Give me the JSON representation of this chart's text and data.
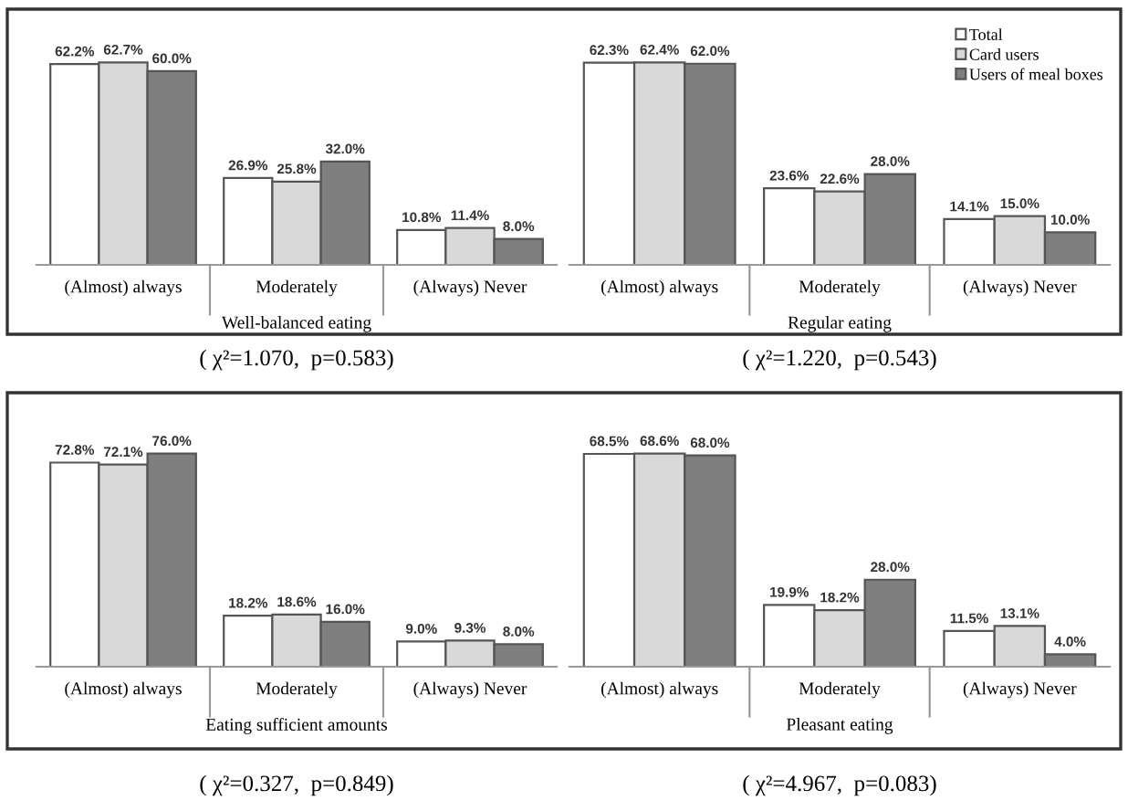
{
  "chart_data": [
    {
      "type": "bar",
      "xlabel": "Well-balanced eating",
      "categories": [
        "(Almost) always",
        "Moderately",
        "(Always) Never"
      ],
      "annotations": [
        "( χ²=1.070,  p=0.583)"
      ],
      "series": [
        {
          "color": "#ffffff",
          "values": [
            62.2,
            26.9,
            10.8
          ],
          "value_labels": [
            "62.2%",
            "26.9%",
            "10.8%"
          ]
        },
        {
          "color": "#d9d9d9",
          "values": [
            62.7,
            25.8,
            11.4
          ],
          "value_labels": [
            "62.7%",
            "25.8%",
            "11.4%"
          ]
        },
        {
          "color": "#7f7f7f",
          "values": [
            60.0,
            32.0,
            8.0
          ],
          "value_labels": [
            "60.0%",
            "32.0%",
            "8.0%"
          ]
        }
      ]
    },
    {
      "type": "bar",
      "xlabel": "Regular eating",
      "categories": [
        "(Almost) always",
        "Moderately",
        "(Always) Never"
      ],
      "annotations": [
        "( χ²=1.220,  p=0.543)"
      ],
      "legend": "top right",
      "series": [
        {
          "name": "Total",
          "color": "#ffffff",
          "values": [
            62.3,
            23.6,
            14.1
          ],
          "value_labels": [
            "62.3%",
            "23.6%",
            "14.1%"
          ]
        },
        {
          "name": "Card users",
          "color": "#d9d9d9",
          "values": [
            62.4,
            22.6,
            15.0
          ],
          "value_labels": [
            "62.4%",
            "22.6%",
            "15.0%"
          ]
        },
        {
          "name": "Users of meal boxes",
          "color": "#7f7f7f",
          "values": [
            62.0,
            28.0,
            10.0
          ],
          "value_labels": [
            "62.0%",
            "28.0%",
            "10.0%"
          ]
        }
      ]
    },
    {
      "type": "bar",
      "xlabel": "Eating sufficient amounts",
      "categories": [
        "(Almost) always",
        "Moderately",
        "(Always) Never"
      ],
      "annotations": [
        "( χ²=0.327,  p=0.849)"
      ],
      "series": [
        {
          "color": "#ffffff",
          "values": [
            72.8,
            18.2,
            9.0
          ],
          "value_labels": [
            "72.8%",
            "18.2%",
            "9.0%"
          ]
        },
        {
          "color": "#d9d9d9",
          "values": [
            72.1,
            18.6,
            9.3
          ],
          "value_labels": [
            "72.1%",
            "18.6%",
            "9.3%"
          ]
        },
        {
          "color": "#7f7f7f",
          "values": [
            76.0,
            16.0,
            8.0
          ],
          "value_labels": [
            "76.0%",
            "16.0%",
            "8.0%"
          ]
        }
      ]
    },
    {
      "type": "bar",
      "xlabel": "Pleasant eating",
      "categories": [
        "(Almost) always",
        "Moderately",
        "(Always) Never"
      ],
      "annotations": [
        "( χ²=4.967,  p=0.083)"
      ],
      "series": [
        {
          "color": "#ffffff",
          "values": [
            68.5,
            19.9,
            11.5
          ],
          "value_labels": [
            "68.5%",
            "19.9%",
            "11.5%"
          ]
        },
        {
          "color": "#d9d9d9",
          "values": [
            68.6,
            18.2,
            13.1
          ],
          "value_labels": [
            "68.6%",
            "18.2%",
            "13.1%"
          ]
        },
        {
          "color": "#7f7f7f",
          "values": [
            68.0,
            28.0,
            4.0
          ],
          "value_labels": [
            "68.0%",
            "28.0%",
            "4.0%"
          ]
        }
      ]
    }
  ]
}
